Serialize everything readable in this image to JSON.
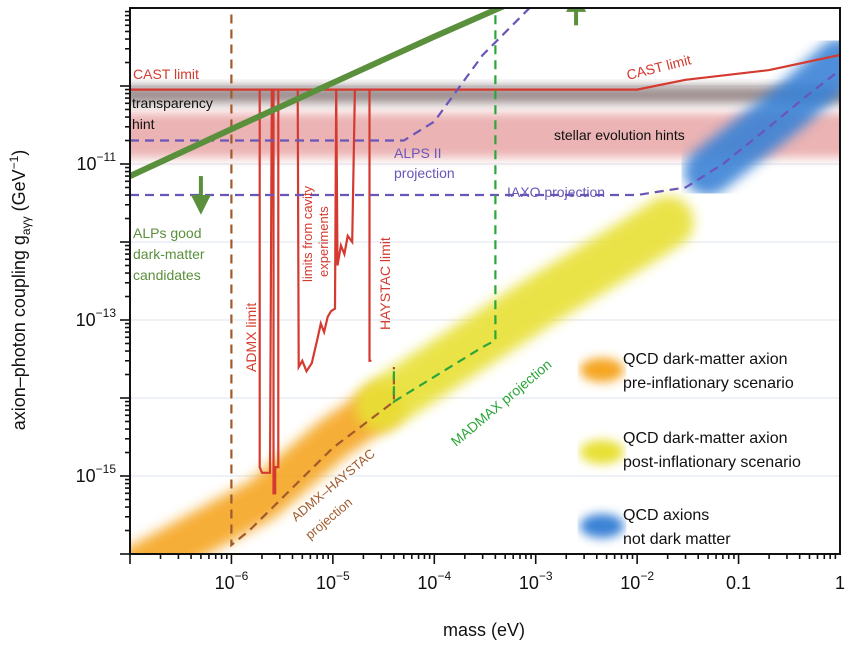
{
  "chart_data": {
    "type": "area",
    "xlabel": "mass (eV)",
    "ylabel_main": "axion–photon coupling g",
    "ylabel_sub": "aγγ",
    "ylabel_unit_open": " (GeV",
    "ylabel_unit_exp": "−1",
    "ylabel_unit_close": ")",
    "x_scale": "log",
    "y_scale": "log",
    "xlim": [
      1e-07,
      1
    ],
    "ylim": [
      1e-16,
      1e-09
    ],
    "x_ticks": [
      {
        "value": 1e-06,
        "base": "10",
        "exp": "−6"
      },
      {
        "value": 1e-05,
        "base": "10",
        "exp": "−5"
      },
      {
        "value": 0.0001,
        "base": "10",
        "exp": "−4"
      },
      {
        "value": 0.001,
        "base": "10",
        "exp": "−3"
      },
      {
        "value": 0.01,
        "base": "10",
        "exp": "−2"
      },
      {
        "value": 0.1,
        "base": "0.1",
        "exp": ""
      },
      {
        "value": 1,
        "base": "1",
        "exp": ""
      }
    ],
    "y_ticks": [
      {
        "value": 1e-11,
        "base": "10",
        "exp": "−11"
      },
      {
        "value": 1e-13,
        "base": "10",
        "exp": "−13"
      },
      {
        "value": 1e-15,
        "base": "10",
        "exp": "−15"
      }
    ],
    "bands": [
      {
        "id": "qcd-pre",
        "label_line1": "QCD dark-matter axion",
        "label_line2": "pre-inflationary scenario",
        "color": "#f5a623",
        "points": [
          [
            1e-07,
            6e-17
          ],
          [
            2e-06,
            5e-16
          ],
          [
            1e-05,
            3e-15
          ],
          [
            3e-05,
            8e-15
          ]
        ]
      },
      {
        "id": "qcd-post",
        "label_line1": "QCD dark-matter axion",
        "label_line2": "post-inflationary scenario",
        "color": "#e8e034",
        "points": [
          [
            3e-05,
            8e-15
          ],
          [
            0.001,
            1.6e-13
          ],
          [
            0.01,
            1e-12
          ],
          [
            0.02,
            1.8e-12
          ]
        ]
      },
      {
        "id": "qcd-notdm",
        "label_line1": "QCD axions",
        "label_line2": "not dark matter",
        "color": "#3a82d6",
        "points": [
          [
            0.05,
            8e-12
          ],
          [
            0.3,
            5e-11
          ],
          [
            1,
            2e-10
          ]
        ]
      }
    ],
    "hints": [
      {
        "id": "transparency",
        "label_line1": "transparency",
        "label_line2": "hint",
        "y_low": 6e-11,
        "y_high": 1e-10,
        "color": "#8c7a7a"
      },
      {
        "id": "stellar",
        "label": "stellar evolution hints",
        "y_low": 1.2e-11,
        "y_high": 4.5e-11,
        "color": "#e8a6a6"
      }
    ],
    "limits": [
      {
        "id": "cast",
        "label": "CAST limit",
        "color": "#d43a2f",
        "points": [
          [
            1e-07,
            9e-11
          ],
          [
            0.01,
            9e-11
          ],
          [
            0.03,
            1.2e-10
          ],
          [
            0.2,
            1.6e-10
          ],
          [
            1,
            2.5e-10
          ]
        ]
      },
      {
        "id": "admx",
        "label": "ADMX limit",
        "color": "#d43a2f",
        "points": [
          [
            1.9e-06,
            9e-11
          ],
          [
            1.9e-06,
            1.3e-15
          ],
          [
            2e-06,
            1.1e-15
          ],
          [
            2.4e-06,
            1.1e-15
          ],
          [
            2.5e-06,
            9e-11
          ],
          [
            2.6e-06,
            9e-11
          ],
          [
            2.6e-06,
            6e-16
          ],
          [
            2.7e-06,
            6e-16
          ],
          [
            2.7e-06,
            1.3e-15
          ],
          [
            2.9e-06,
            1.3e-15
          ],
          [
            2.9e-06,
            9e-11
          ],
          [
            3.4e-06,
            9e-11
          ]
        ]
      },
      {
        "id": "cavity",
        "label_line1": "limits from cavity",
        "label_line2": "experiments",
        "color": "#d43a2f",
        "points": [
          [
            4.5e-06,
            9e-11
          ],
          [
            4.6e-06,
            2.5e-14
          ],
          [
            5e-06,
            3e-14
          ],
          [
            5.5e-06,
            2.2e-14
          ],
          [
            6.2e-06,
            2.8e-14
          ],
          [
            6.6e-06,
            4e-14
          ],
          [
            7.1e-06,
            6e-14
          ],
          [
            7.6e-06,
            9e-14
          ],
          [
            8.2e-06,
            7e-14
          ],
          [
            8.9e-06,
            1.1e-13
          ],
          [
            9.6e-06,
            1.3e-13
          ],
          [
            1.05e-05,
            1.4e-13
          ],
          [
            1.08e-05,
            9e-11
          ],
          [
            1.11e-05,
            5e-13
          ],
          [
            1.2e-05,
            9e-13
          ],
          [
            1.3e-05,
            7e-13
          ],
          [
            1.4e-05,
            1.2e-12
          ],
          [
            1.55e-05,
            1e-12
          ],
          [
            1.65e-05,
            9e-11
          ]
        ]
      },
      {
        "id": "haystac",
        "label": "HAYSTAC limit",
        "color": "#d43a2f",
        "points": [
          [
            2.3e-05,
            9e-11
          ],
          [
            2.3e-05,
            3e-14
          ],
          [
            2.4e-05,
            3e-14
          ]
        ]
      }
    ],
    "projections": [
      {
        "id": "alps2",
        "label_line1": "ALPS II",
        "label_line2": "projection",
        "color": "#6a55b8",
        "points": [
          [
            1e-07,
            2e-11
          ],
          [
            5e-05,
            2e-11
          ],
          [
            0.0001,
            3.5e-11
          ],
          [
            0.0003,
            2.5e-10
          ],
          [
            0.001,
            1.2e-09
          ]
        ]
      },
      {
        "id": "iaxo",
        "label": "IAXO projection",
        "color": "#6a55b8",
        "points": [
          [
            1e-07,
            4e-12
          ],
          [
            0.01,
            4e-12
          ],
          [
            0.03,
            5e-12
          ],
          [
            0.07,
            1e-11
          ],
          [
            0.2,
            3e-11
          ],
          [
            0.5,
            8e-11
          ],
          [
            1,
            1.6e-10
          ]
        ]
      },
      {
        "id": "admx-haystac",
        "label_line1": "ADMX–HAYSTAC",
        "label_line2": "projection",
        "color": "#a05a2c",
        "points": [
          [
            1e-06,
            2e-09
          ],
          [
            1e-06,
            1.3e-16
          ],
          [
            1.5e-06,
            2e-16
          ],
          [
            1e-05,
            2.3e-15
          ],
          [
            4e-05,
            9e-15
          ],
          [
            4e-05,
            2.5e-14
          ]
        ]
      },
      {
        "id": "madmax",
        "label": "MADMAX projection",
        "color": "#2ca63a",
        "points": [
          [
            4e-05,
            2.2e-14
          ],
          [
            4e-05,
            9e-15
          ],
          [
            0.0003,
            4.5e-14
          ],
          [
            0.0004,
            5.5e-14
          ],
          [
            0.0004,
            1e-09
          ]
        ]
      }
    ],
    "alps_dm": {
      "label_line1": "ALPs good",
      "label_line2": "dark-matter",
      "label_line3": "candidates",
      "color": "#5a8f3c",
      "points": [
        [
          1e-07,
          7e-12
        ],
        [
          1e-06,
          2.8e-11
        ],
        [
          1e-05,
          1.1e-10
        ],
        [
          0.0001,
          4.3e-10
        ],
        [
          0.001,
          1.6e-09
        ],
        [
          0.003,
          2.8e-09
        ]
      ],
      "arrows": [
        [
          5e-07,
          7e-12,
          5e-07,
          3e-12
        ],
        [
          0.0025,
          6e-10,
          0.0025,
          1.2e-09
        ]
      ]
    }
  }
}
